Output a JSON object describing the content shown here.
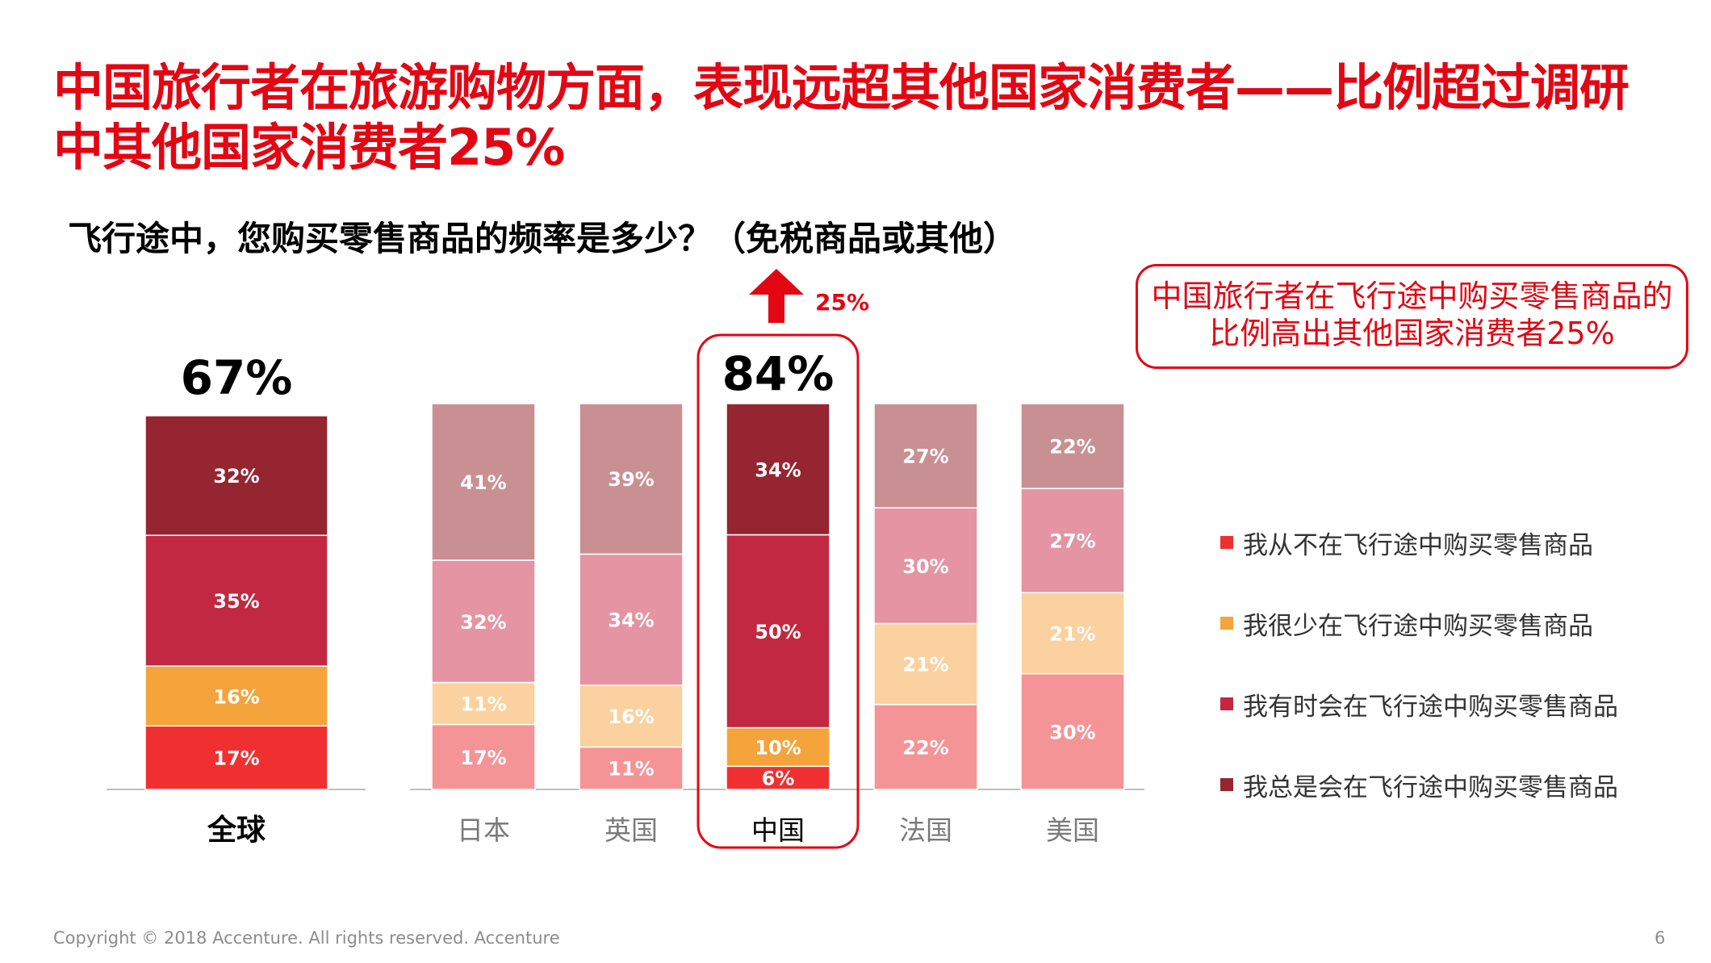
{
  "slide": {
    "headline": "中国旅行者在旅游购物方面，表现远超其他国家消费者——比例超过调研中其他国家消费者25%",
    "question": "飞行途中，您购买零售商品的频率是多少？（免税商品或其他）",
    "callout": "中国旅行者在飞行途中购买零售商品的比例高出其他国家消费者25%",
    "footer": "Copyright © 2018 Accenture. All rights reserved. Accenture",
    "page_number": "6"
  },
  "colors": {
    "accent": "#e30613",
    "never_global": "#f03030",
    "rarely_global": "#f4a43b",
    "sometimes_global": "#c22841",
    "always_global": "#952530",
    "never_other": "#f49496",
    "rarely_other": "#fbd19f",
    "sometimes_other": "#e494a2",
    "always_other": "#c99093"
  },
  "chart_data": {
    "type": "bar",
    "stacked": true,
    "unit": "%",
    "ylim": [
      0,
      100
    ],
    "categories": [
      "全球",
      "日本",
      "英国",
      "中国",
      "法国",
      "美国"
    ],
    "series": [
      {
        "name": "我从不在飞行途中购买零售商品",
        "values": [
          17,
          17,
          11,
          6,
          22,
          30
        ]
      },
      {
        "name": "我很少在飞行途中购买零售商品",
        "values": [
          16,
          11,
          16,
          10,
          21,
          21
        ]
      },
      {
        "name": "我有时会在飞行途中购买零售商品",
        "values": [
          35,
          32,
          34,
          50,
          30,
          27
        ]
      },
      {
        "name": "我总是会在飞行途中购买零售商品",
        "values": [
          32,
          41,
          39,
          34,
          27,
          22
        ]
      }
    ],
    "totals": [
      {
        "category": "全球",
        "label": "67%"
      },
      {
        "category": "中国",
        "label": "84%"
      }
    ],
    "highlight": {
      "category": "中国",
      "arrow_label": "25%"
    },
    "legend_position": "right"
  }
}
